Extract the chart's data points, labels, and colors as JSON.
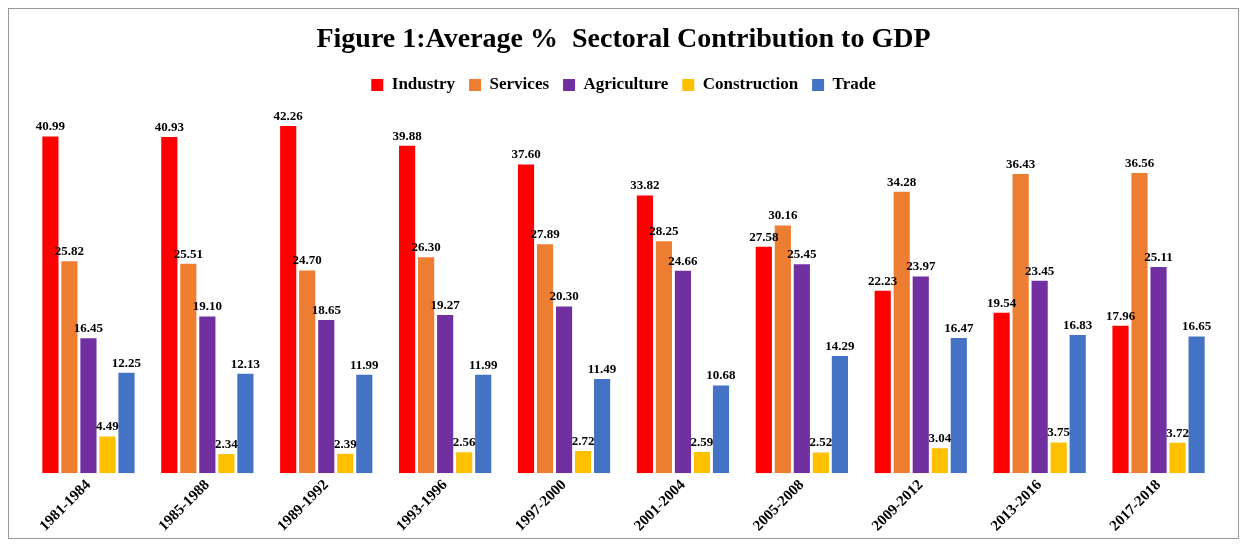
{
  "chart_data": {
    "type": "bar",
    "title": "Figure 1:Average %  Sectoral Contribution to GDP",
    "categories": [
      "1981-1984",
      "1985-1988",
      "1989-1992",
      "1993-1996",
      "1997-2000",
      "2001-2004",
      "2005-2008",
      "2009-2012",
      "2013-2016",
      "2017-2018"
    ],
    "series": [
      {
        "name": "Industry",
        "color": "#ff0000",
        "values": [
          40.99,
          40.93,
          42.26,
          39.88,
          37.6,
          33.82,
          27.58,
          22.23,
          19.54,
          17.96
        ],
        "value_labels": [
          "40.99",
          "40.93",
          "42.26",
          "39.88",
          "37.60",
          "33.82",
          "27.58",
          "22.23",
          "19.54",
          "17.96"
        ]
      },
      {
        "name": "Services",
        "color": "#ed7d31",
        "values": [
          25.82,
          25.51,
          24.7,
          26.3,
          27.89,
          28.25,
          30.16,
          34.28,
          36.43,
          36.56
        ],
        "value_labels": [
          "25.82",
          "25.51",
          "24.70",
          "26.30",
          "27.89",
          "28.25",
          "30.16",
          "34.28",
          "36.43",
          "36.56"
        ]
      },
      {
        "name": "Agriculture",
        "color": "#7030a0",
        "values": [
          16.45,
          19.1,
          18.65,
          19.27,
          20.3,
          24.66,
          25.45,
          23.97,
          23.45,
          25.11
        ],
        "value_labels": [
          "16.45",
          "19.10",
          "18.65",
          "19.27",
          "20.30",
          "24.66",
          "25.45",
          "23.97",
          "23.45",
          "25.11"
        ]
      },
      {
        "name": "Construction",
        "color": "#ffc000",
        "values": [
          4.49,
          2.34,
          2.39,
          2.56,
          2.72,
          2.59,
          2.52,
          3.04,
          3.75,
          3.72
        ],
        "value_labels": [
          "4.49",
          "2.34",
          "2.39",
          "2.56",
          "2.72",
          "2.59",
          "2.52",
          "3.04",
          "3.75",
          "3.72"
        ]
      },
      {
        "name": "Trade",
        "color": "#4472c4",
        "values": [
          12.25,
          12.13,
          11.99,
          11.99,
          11.49,
          10.68,
          14.29,
          16.47,
          16.83,
          16.65
        ],
        "value_labels": [
          "12.25",
          "12.13",
          "11.99",
          "11.99",
          "11.49",
          "10.68",
          "14.29",
          "16.47",
          "16.83",
          "16.65"
        ]
      }
    ],
    "legend": "top",
    "grid": false,
    "tick_labels": "x"
  }
}
